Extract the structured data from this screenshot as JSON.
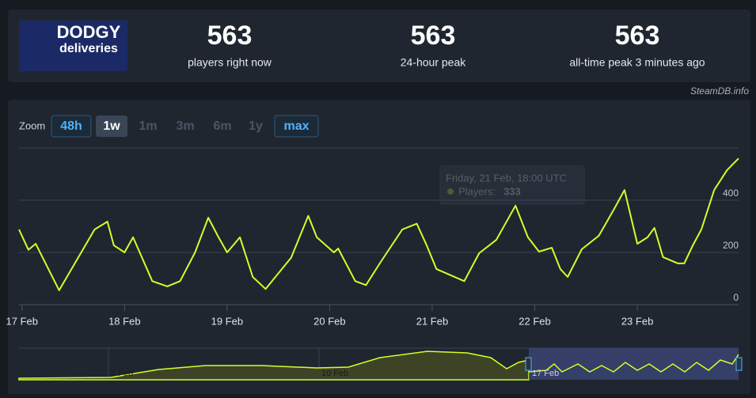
{
  "header": {
    "logo": {
      "line1": "DODGY",
      "line2": "deliveries"
    },
    "stats": [
      {
        "value": "563",
        "label": "players right now"
      },
      {
        "value": "563",
        "label": "24-hour peak"
      },
      {
        "value": "563",
        "label": "all-time peak 3 minutes ago"
      }
    ],
    "credit": "SteamDB.info"
  },
  "zoom": {
    "label": "Zoom",
    "options": [
      "48h",
      "1w",
      "1m",
      "3m",
      "6m",
      "1y",
      "max"
    ]
  },
  "chart_data": {
    "type": "line",
    "x": [
      -0.7,
      1.5,
      3.2,
      8.7,
      17,
      20,
      21.5,
      24,
      26,
      30.5,
      34,
      37,
      40.5,
      43.6,
      46,
      48,
      51,
      54,
      57,
      60,
      63,
      67,
      69,
      73,
      74,
      78,
      80.5,
      84,
      89,
      92.4,
      94.7,
      97,
      103.5,
      107,
      111,
      115.5,
      118.4,
      121,
      124,
      126,
      127.7,
      131,
      135,
      138.7,
      141,
      144,
      146.4,
      148,
      150,
      153.5,
      155,
      157,
      159,
      162,
      165,
      167.7
    ],
    "series": [
      {
        "name": "Players",
        "color": "#d4ff2a",
        "values": [
          288,
          210,
          233,
          55,
          288,
          318,
          227,
          200,
          258,
          90,
          70,
          90,
          200,
          333,
          258,
          200,
          258,
          106,
          60,
          120,
          180,
          340,
          258,
          200,
          215,
          90,
          75,
          165,
          288,
          310,
          227,
          136,
          90,
          197,
          248,
          379,
          258,
          203,
          218,
          136,
          106,
          212,
          264,
          370,
          439,
          233,
          258,
          294,
          182,
          158,
          158,
          227,
          288,
          439,
          515,
          560
        ]
      }
    ],
    "xlim": [
      -0.7,
      167.7
    ],
    "xticks": [
      {
        "value": 0,
        "label": "17 Feb"
      },
      {
        "value": 24,
        "label": "18 Feb"
      },
      {
        "value": 48,
        "label": "19 Feb"
      },
      {
        "value": 72,
        "label": "20 Feb"
      },
      {
        "value": 96,
        "label": "21 Feb"
      },
      {
        "value": 120,
        "label": "22 Feb"
      },
      {
        "value": 144,
        "label": "23 Feb"
      }
    ],
    "ylim": [
      0,
      600
    ],
    "yticks": [
      0,
      200,
      400
    ],
    "grid": true,
    "tooltip": {
      "title": "Friday, 21 Feb, 18:00 UTC",
      "label": "Players:",
      "value": 333
    },
    "navigator_labels": [
      "3 Feb",
      "10 Feb",
      "17 Feb"
    ]
  }
}
